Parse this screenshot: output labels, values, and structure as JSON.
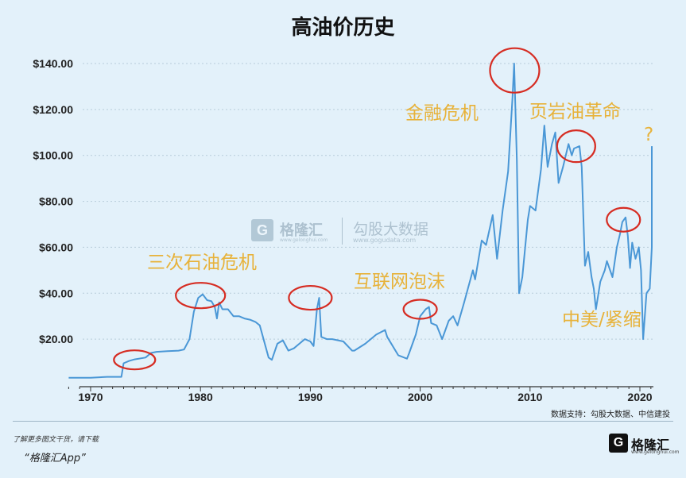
{
  "title": "高油价历史",
  "source": "数据支持：勾股大数据、中信建投",
  "footer": {
    "promo": "了解更多图文干货，请下载",
    "app": "“格隆汇App”",
    "brand": "格隆汇",
    "brand_sub": "www.gelonghui.com"
  },
  "watermark": {
    "name": "格隆汇",
    "name_sub": "www.gelonghui.com",
    "name2": "勾股大数据",
    "url": "www.gogudata.com"
  },
  "colors": {
    "line": "#4a97d6",
    "circle": "#d62c22",
    "annotation": "#e7b23a",
    "background": "#e3f1fa"
  },
  "chart_data": {
    "type": "line",
    "title": "高油价历史",
    "xlabel": "",
    "ylabel": "",
    "xlim": [
      1968,
      2021.5
    ],
    "ylim": [
      0,
      145
    ],
    "xticks": [
      1970,
      1980,
      1990,
      2000,
      2010,
      2020
    ],
    "yticks": [
      20,
      40,
      60,
      80,
      100,
      120,
      140
    ],
    "ytick_labels": [
      "$20.00",
      "$40.00",
      "$60.00",
      "$80.00",
      "$100.00",
      "$120.00",
      "$140.00"
    ],
    "grid": "horizontal dotted",
    "series": [
      {
        "values": [
          [
            1968,
            3.2
          ],
          [
            1970,
            3.2
          ],
          [
            1971.5,
            3.6
          ],
          [
            1972.8,
            3.6
          ],
          [
            1973,
            9.5
          ],
          [
            1973.5,
            10.5
          ],
          [
            1974,
            11.2
          ],
          [
            1975,
            12
          ],
          [
            1975.5,
            14
          ],
          [
            1976,
            14.5
          ],
          [
            1977,
            14.8
          ],
          [
            1978,
            15
          ],
          [
            1978.5,
            15.5
          ],
          [
            1979,
            20
          ],
          [
            1979.4,
            32
          ],
          [
            1979.8,
            38
          ],
          [
            1980.2,
            39.5
          ],
          [
            1980.6,
            37
          ],
          [
            1981,
            36.5
          ],
          [
            1981.3,
            34
          ],
          [
            1981.5,
            29
          ],
          [
            1981.7,
            36
          ],
          [
            1982,
            33
          ],
          [
            1982.5,
            33
          ],
          [
            1983,
            30
          ],
          [
            1983.5,
            30
          ],
          [
            1984,
            29
          ],
          [
            1984.5,
            28.5
          ],
          [
            1985,
            27.5
          ],
          [
            1985.4,
            26
          ],
          [
            1986.2,
            12
          ],
          [
            1986.5,
            11
          ],
          [
            1987,
            18
          ],
          [
            1987.5,
            19.5
          ],
          [
            1988,
            15
          ],
          [
            1988.5,
            16
          ],
          [
            1989,
            18
          ],
          [
            1989.5,
            20
          ],
          [
            1990,
            19
          ],
          [
            1990.3,
            17
          ],
          [
            1990.6,
            33
          ],
          [
            1990.8,
            38
          ],
          [
            1991,
            21
          ],
          [
            1991.5,
            20
          ],
          [
            1992,
            20
          ],
          [
            1993,
            19
          ],
          [
            1993.8,
            15
          ],
          [
            1994,
            15
          ],
          [
            1995,
            18
          ],
          [
            1996,
            22
          ],
          [
            1996.8,
            24
          ],
          [
            1997,
            21
          ],
          [
            1998,
            13
          ],
          [
            1998.8,
            11.5
          ],
          [
            1999,
            14
          ],
          [
            1999.6,
            22
          ],
          [
            2000,
            30
          ],
          [
            2000.5,
            33
          ],
          [
            2000.8,
            34
          ],
          [
            2001,
            27
          ],
          [
            2001.5,
            26
          ],
          [
            2002,
            20
          ],
          [
            2002.6,
            28
          ],
          [
            2003,
            30
          ],
          [
            2003.4,
            26
          ],
          [
            2004,
            36
          ],
          [
            2004.8,
            50
          ],
          [
            2005,
            46
          ],
          [
            2005.6,
            63
          ],
          [
            2006,
            61
          ],
          [
            2006.6,
            74
          ],
          [
            2007,
            55
          ],
          [
            2007.5,
            76
          ],
          [
            2008,
            93
          ],
          [
            2008.4,
            125
          ],
          [
            2008.55,
            140
          ],
          [
            2008.8,
            98
          ],
          [
            2009,
            40
          ],
          [
            2009.3,
            47
          ],
          [
            2009.8,
            72
          ],
          [
            2010,
            78
          ],
          [
            2010.5,
            76
          ],
          [
            2011,
            94
          ],
          [
            2011.3,
            113
          ],
          [
            2011.6,
            95
          ],
          [
            2012,
            105
          ],
          [
            2012.3,
            110
          ],
          [
            2012.6,
            88
          ],
          [
            2013,
            95
          ],
          [
            2013.5,
            105
          ],
          [
            2013.8,
            100
          ],
          [
            2014,
            103
          ],
          [
            2014.5,
            104
          ],
          [
            2014.7,
            95
          ],
          [
            2015,
            52
          ],
          [
            2015.3,
            58
          ],
          [
            2015.6,
            47
          ],
          [
            2015.8,
            42
          ],
          [
            2016,
            33
          ],
          [
            2016.4,
            45
          ],
          [
            2016.8,
            50
          ],
          [
            2017,
            54
          ],
          [
            2017.5,
            47
          ],
          [
            2017.9,
            60
          ],
          [
            2018.2,
            66
          ],
          [
            2018.4,
            71
          ],
          [
            2018.7,
            73
          ],
          [
            2018.9,
            65
          ],
          [
            2019.1,
            51
          ],
          [
            2019.3,
            62
          ],
          [
            2019.6,
            55
          ],
          [
            2019.9,
            60
          ],
          [
            2020.1,
            50
          ],
          [
            2020.3,
            20
          ],
          [
            2020.6,
            40
          ],
          [
            2020.9,
            42
          ],
          [
            2021.1,
            60
          ],
          [
            2021.3,
            75
          ],
          [
            2021.5,
            72
          ],
          [
            2021.7,
            84
          ],
          [
            2021.9,
            70
          ],
          [
            2022.1,
            104
          ]
        ]
      }
    ],
    "annotations": [
      {
        "text": "三次石油危机"
      },
      {
        "text": "互联网泡沫"
      },
      {
        "text": "金融危机"
      },
      {
        "text": "页岩油革命"
      },
      {
        "text": "中美/紧缩"
      },
      {
        "text": "?"
      }
    ],
    "highlights": [
      {
        "x": 1974,
        "y": 11
      },
      {
        "x": 1980,
        "y": 39
      },
      {
        "x": 1990,
        "y": 38
      },
      {
        "x": 2000,
        "y": 33
      },
      {
        "x": 2008.6,
        "y": 137
      },
      {
        "x": 2014.2,
        "y": 104
      },
      {
        "x": 2018.5,
        "y": 72
      }
    ]
  }
}
